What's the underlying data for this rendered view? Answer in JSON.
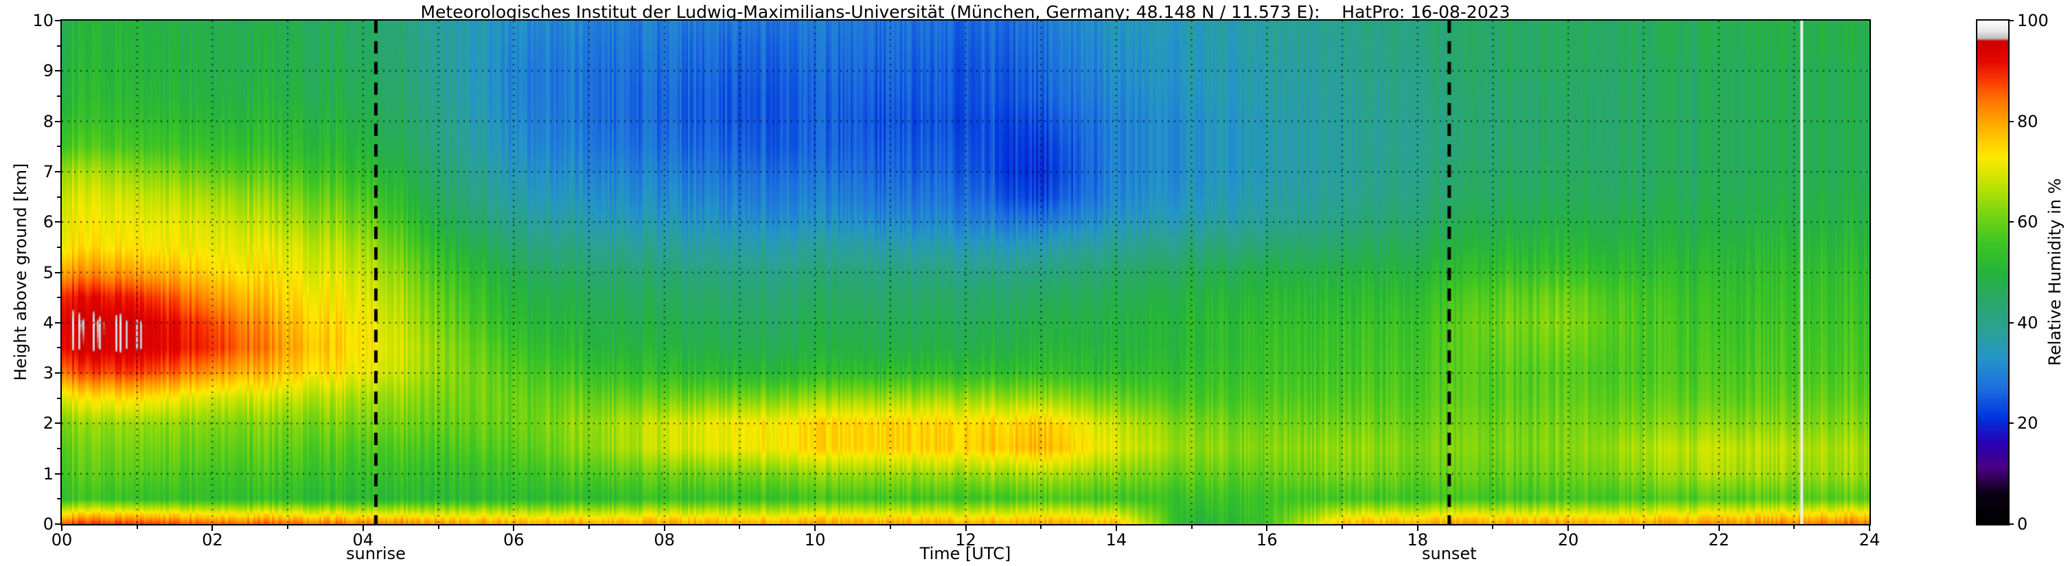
{
  "chart_data": {
    "type": "heatmap",
    "title": "Meteorologisches Institut der Ludwig-Maximilians-Universität (München, Germany; 48.148 N / 11.573 E):    HatPro: 16-08-2023",
    "xlabel": "Time [UTC]",
    "ylabel": "Height above ground [km]",
    "colorbar_label": "Relative Humidity in %",
    "x_range": [
      0,
      24
    ],
    "y_range": [
      0,
      10
    ],
    "colorbar_range": [
      0,
      100
    ],
    "x_tick_values": [
      0,
      2,
      4,
      6,
      8,
      10,
      12,
      14,
      16,
      18,
      20,
      22,
      24
    ],
    "x_tick_labels": [
      "00",
      "02",
      "04",
      "06",
      "08",
      "10",
      "12",
      "14",
      "16",
      "18",
      "20",
      "22",
      "24"
    ],
    "y_tick_values": [
      0,
      1,
      2,
      3,
      4,
      5,
      6,
      7,
      8,
      9,
      10
    ],
    "y_tick_labels": [
      "0",
      "1",
      "2",
      "3",
      "4",
      "5",
      "6",
      "7",
      "8",
      "9",
      "10"
    ],
    "colorbar_tick_values": [
      0,
      20,
      40,
      60,
      80,
      100
    ],
    "colorbar_tick_labels": [
      "0",
      "20",
      "40",
      "60",
      "80",
      "100"
    ],
    "grid_lines": {
      "vertical_every_hour": 1,
      "horizontal_every_km": 1,
      "style": "dotted"
    },
    "annotations": {
      "sunrise": {
        "label": "sunrise",
        "time_utc": 4.17
      },
      "sunset": {
        "label": "sunset",
        "time_utc": 18.42
      }
    },
    "missing_data_time_utc": 23.1,
    "colormap_stops": [
      {
        "v": 0,
        "c": "#000000"
      },
      {
        "v": 6,
        "c": "#0a0014"
      },
      {
        "v": 11,
        "c": "#4b0082"
      },
      {
        "v": 16,
        "c": "#2a00b4"
      },
      {
        "v": 21,
        "c": "#0033dd"
      },
      {
        "v": 27,
        "c": "#1e6fe0"
      },
      {
        "v": 33,
        "c": "#2496c8"
      },
      {
        "v": 38,
        "c": "#2aa199"
      },
      {
        "v": 44,
        "c": "#28a86b"
      },
      {
        "v": 50,
        "c": "#25b43c"
      },
      {
        "v": 56,
        "c": "#3fc623"
      },
      {
        "v": 62,
        "c": "#7fd611"
      },
      {
        "v": 68,
        "c": "#c8e400"
      },
      {
        "v": 73,
        "c": "#ffe900"
      },
      {
        "v": 79,
        "c": "#ffb000"
      },
      {
        "v": 84,
        "c": "#ff7700"
      },
      {
        "v": 88,
        "c": "#fb3c00"
      },
      {
        "v": 92,
        "c": "#e60800"
      },
      {
        "v": 96,
        "c": "#cf0000"
      },
      {
        "v": 96.5,
        "c": "#c0c0c0"
      },
      {
        "v": 98,
        "c": "#e8e8e8"
      },
      {
        "v": 100,
        "c": "#ffffff"
      }
    ],
    "times_utc": [
      0,
      1,
      2,
      3,
      4,
      5,
      6,
      7,
      8,
      9,
      10,
      11,
      12,
      13,
      14,
      15,
      16,
      17,
      18,
      19,
      20,
      21,
      22,
      23,
      24
    ],
    "heights_km": [
      0,
      0.5,
      1,
      1.5,
      2,
      2.5,
      3,
      3.5,
      4,
      4.5,
      5,
      5.5,
      6,
      6.5,
      7,
      7.5,
      8,
      8.5,
      9,
      9.5,
      10
    ],
    "grid_order": "rh_percent rows run from height 0 km (bottom) to 10 km (top); columns follow times_utc",
    "rh_percent": [
      [
        88,
        88,
        86,
        85,
        84,
        82,
        80,
        80,
        80,
        80,
        80,
        80,
        80,
        80,
        78,
        50,
        55,
        78,
        80,
        80,
        80,
        80,
        82,
        83,
        85
      ],
      [
        55,
        54,
        54,
        53,
        52,
        52,
        52,
        53,
        54,
        55,
        55,
        56,
        56,
        57,
        56,
        55,
        55,
        56,
        56,
        55,
        56,
        57,
        58,
        58,
        59
      ],
      [
        58,
        58,
        57,
        56,
        55,
        54,
        55,
        58,
        60,
        62,
        63,
        64,
        65,
        66,
        63,
        60,
        59,
        62,
        60,
        59,
        60,
        63,
        66,
        64,
        65
      ],
      [
        60,
        61,
        60,
        59,
        58,
        57,
        58,
        63,
        68,
        72,
        74,
        75,
        76,
        78,
        70,
        64,
        62,
        64,
        62,
        61,
        62,
        66,
        68,
        66,
        66
      ],
      [
        63,
        64,
        63,
        62,
        62,
        60,
        60,
        64,
        68,
        73,
        74,
        75,
        75,
        76,
        68,
        62,
        60,
        61,
        60,
        60,
        61,
        62,
        63,
        62,
        63
      ],
      [
        72,
        74,
        70,
        68,
        66,
        62,
        60,
        60,
        60,
        62,
        63,
        64,
        65,
        64,
        60,
        57,
        57,
        58,
        58,
        58,
        59,
        59,
        59,
        59,
        60
      ],
      [
        86,
        88,
        82,
        76,
        72,
        64,
        58,
        55,
        53,
        52,
        52,
        53,
        54,
        54,
        53,
        54,
        55,
        56,
        57,
        58,
        58,
        57,
        57,
        57,
        58
      ],
      [
        94,
        95,
        90,
        80,
        74,
        64,
        55,
        51,
        49,
        48,
        48,
        48,
        49,
        50,
        50,
        52,
        54,
        55,
        56,
        59,
        60,
        57,
        56,
        56,
        57
      ],
      [
        95,
        95,
        88,
        78,
        73,
        62,
        52,
        49,
        47,
        46,
        46,
        46,
        47,
        48,
        49,
        52,
        53,
        54,
        55,
        60,
        62,
        57,
        55,
        55,
        56
      ],
      [
        92,
        90,
        82,
        75,
        71,
        60,
        50,
        47,
        45,
        44,
        44,
        44,
        45,
        45,
        47,
        50,
        51,
        52,
        53,
        58,
        60,
        56,
        54,
        54,
        55
      ],
      [
        82,
        80,
        76,
        72,
        69,
        57,
        47,
        44,
        42,
        41,
        41,
        41,
        41,
        41,
        44,
        47,
        48,
        49,
        50,
        54,
        55,
        53,
        52,
        53,
        54
      ],
      [
        74,
        73,
        72,
        70,
        66,
        53,
        43,
        40,
        38,
        37,
        37,
        36,
        36,
        35,
        39,
        42,
        43,
        45,
        47,
        50,
        51,
        50,
        50,
        51,
        52
      ],
      [
        72,
        71,
        70,
        66,
        62,
        49,
        39,
        36,
        34,
        33,
        32,
        31,
        31,
        28,
        34,
        37,
        38,
        41,
        44,
        47,
        48,
        48,
        48,
        49,
        50
      ],
      [
        70,
        68,
        66,
        62,
        58,
        46,
        36,
        33,
        31,
        30,
        29,
        28,
        28,
        22,
        31,
        34,
        36,
        39,
        42,
        45,
        46,
        46,
        47,
        48,
        49
      ],
      [
        66,
        63,
        60,
        57,
        54,
        44,
        34,
        31,
        29,
        28,
        27,
        26,
        26,
        20,
        30,
        33,
        35,
        38,
        41,
        44,
        45,
        45,
        46,
        47,
        48
      ],
      [
        58,
        56,
        55,
        53,
        51,
        42,
        32,
        29,
        27,
        26,
        25,
        25,
        25,
        21,
        30,
        33,
        35,
        38,
        40,
        43,
        44,
        45,
        46,
        47,
        48
      ],
      [
        54,
        53,
        52,
        51,
        49,
        41,
        31,
        28,
        26,
        25,
        25,
        24,
        24,
        23,
        30,
        33,
        35,
        38,
        40,
        43,
        44,
        45,
        46,
        47,
        48
      ],
      [
        52,
        51,
        50,
        49,
        48,
        40,
        30,
        28,
        26,
        25,
        25,
        25,
        25,
        25,
        31,
        34,
        36,
        38,
        41,
        43,
        44,
        45,
        46,
        47,
        48
      ],
      [
        51,
        50,
        49,
        48,
        47,
        39,
        30,
        28,
        27,
        26,
        26,
        26,
        25,
        26,
        32,
        35,
        36,
        39,
        41,
        44,
        45,
        45,
        46,
        47,
        48
      ],
      [
        50,
        50,
        49,
        48,
        46,
        39,
        31,
        29,
        28,
        27,
        27,
        27,
        26,
        27,
        33,
        35,
        37,
        39,
        42,
        44,
        45,
        46,
        47,
        48,
        49
      ],
      [
        50,
        49,
        48,
        47,
        46,
        38,
        32,
        30,
        29,
        29,
        28,
        28,
        27,
        28,
        34,
        36,
        37,
        40,
        42,
        44,
        45,
        46,
        47,
        48,
        49
      ]
    ]
  }
}
